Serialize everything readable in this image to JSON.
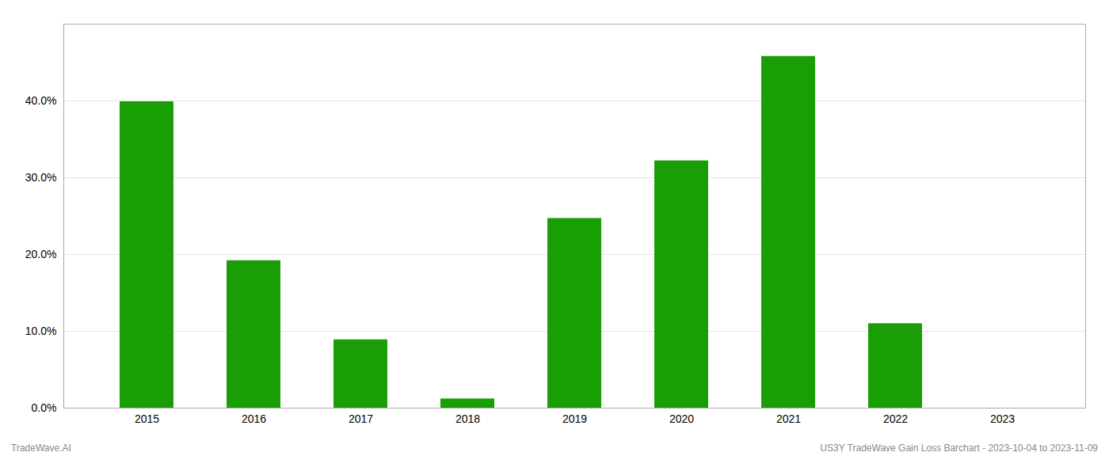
{
  "chart_data": {
    "type": "bar",
    "categories": [
      "2015",
      "2016",
      "2017",
      "2018",
      "2019",
      "2020",
      "2021",
      "2022",
      "2023"
    ],
    "values": [
      0.399,
      0.192,
      0.089,
      0.012,
      0.247,
      0.322,
      0.458,
      0.11,
      0.0
    ],
    "color": "#1a9e06",
    "ylim": [
      0,
      0.5
    ],
    "yticks": [
      {
        "value": 0.0,
        "label": "0.0%"
      },
      {
        "value": 0.1,
        "label": "10.0%"
      },
      {
        "value": 0.2,
        "label": "20.0%"
      },
      {
        "value": 0.3,
        "label": "30.0%"
      },
      {
        "value": 0.4,
        "label": "40.0%"
      }
    ],
    "grid": true,
    "annotations": [
      "TradeWave.AI",
      "US3Y TradeWave Gain Loss Barchart - 2023-10-04 to 2023-11-09"
    ]
  }
}
